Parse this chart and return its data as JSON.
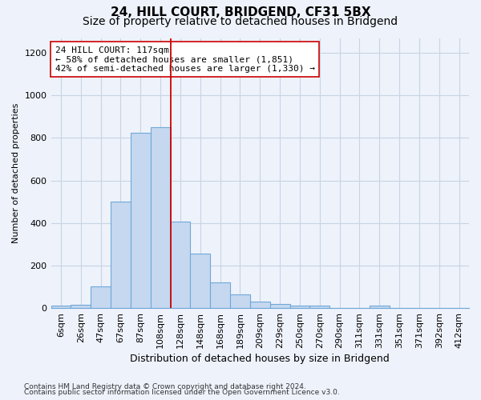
{
  "title1": "24, HILL COURT, BRIDGEND, CF31 5BX",
  "title2": "Size of property relative to detached houses in Bridgend",
  "xlabel": "Distribution of detached houses by size in Bridgend",
  "ylabel": "Number of detached properties",
  "footer1": "Contains HM Land Registry data © Crown copyright and database right 2024.",
  "footer2": "Contains public sector information licensed under the Open Government Licence v3.0.",
  "categories": [
    "6sqm",
    "26sqm",
    "47sqm",
    "67sqm",
    "87sqm",
    "108sqm",
    "128sqm",
    "148sqm",
    "168sqm",
    "189sqm",
    "209sqm",
    "229sqm",
    "250sqm",
    "270sqm",
    "290sqm",
    "311sqm",
    "331sqm",
    "351sqm",
    "371sqm",
    "392sqm",
    "412sqm"
  ],
  "values": [
    10,
    15,
    100,
    500,
    825,
    850,
    405,
    255,
    120,
    65,
    30,
    20,
    12,
    12,
    0,
    0,
    10,
    0,
    0,
    0,
    0
  ],
  "bar_color": "#c5d8f0",
  "bar_edgecolor": "#6fa8d8",
  "bar_linewidth": 0.8,
  "vline_x": 5.5,
  "vline_color": "#cc0000",
  "annotation_text": "24 HILL COURT: 117sqm\n← 58% of detached houses are smaller (1,851)\n42% of semi-detached houses are larger (1,330) →",
  "annotation_box_edgecolor": "#cc0000",
  "annotation_box_facecolor": "#ffffff",
  "ylim_max": 1270,
  "yticks": [
    0,
    200,
    400,
    600,
    800,
    1000,
    1200
  ],
  "grid_color": "#c8d4e4",
  "background_color": "#eef2fb",
  "plot_bg_color": "#eef2fb",
  "title1_fontsize": 11,
  "title2_fontsize": 10,
  "xlabel_fontsize": 9,
  "ylabel_fontsize": 8,
  "tick_fontsize": 8,
  "annot_fontsize": 8,
  "footer_fontsize": 6.5
}
